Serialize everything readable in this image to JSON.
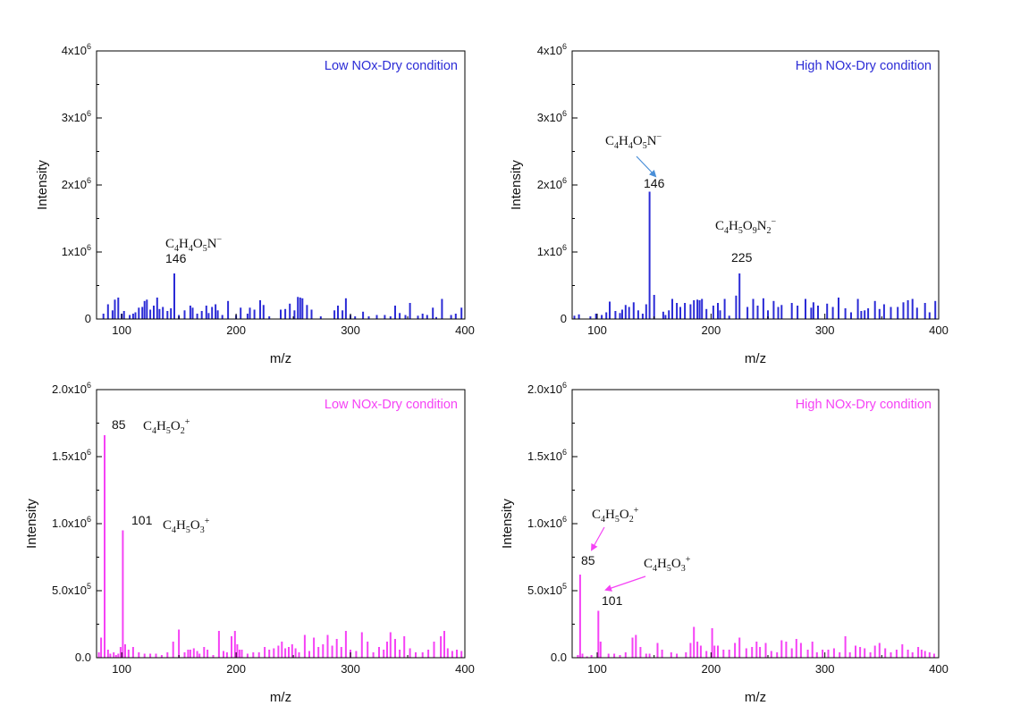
{
  "chart_data": [
    {
      "type": "bar",
      "title": "Low NOx-Dry condition",
      "xlabel": "m/z",
      "ylabel": "Intensity",
      "xlim": [
        78,
        400
      ],
      "ylim": [
        0,
        4000000
      ],
      "xticks": [
        "100",
        "200",
        "300",
        "400"
      ],
      "yticks": [
        "0",
        "1x10^6",
        "2x10^6",
        "3x10^6",
        "4x10^6"
      ],
      "color": "#2b2bd6",
      "x": [
        84,
        88,
        92,
        94,
        97,
        100,
        102,
        107,
        110,
        112,
        115,
        118,
        120,
        122,
        125,
        128,
        131,
        133,
        136,
        140,
        143,
        146,
        150,
        155,
        160,
        162,
        166,
        170,
        174,
        176,
        179,
        182,
        184,
        188,
        193,
        200,
        204,
        210,
        212,
        216,
        221,
        224,
        229,
        239,
        243,
        247,
        251,
        254,
        256,
        258,
        262,
        266,
        274,
        286,
        289,
        293,
        296,
        300,
        304,
        311,
        316,
        323,
        330,
        335,
        339,
        343,
        348,
        352,
        359,
        363,
        367,
        372,
        375,
        380,
        388,
        392,
        397
      ],
      "values": [
        80000,
        220000,
        130000,
        290000,
        320000,
        80000,
        120000,
        60000,
        80000,
        100000,
        170000,
        180000,
        270000,
        290000,
        140000,
        200000,
        320000,
        150000,
        180000,
        120000,
        160000,
        680000,
        60000,
        130000,
        200000,
        170000,
        80000,
        120000,
        200000,
        90000,
        180000,
        220000,
        130000,
        60000,
        270000,
        60000,
        170000,
        80000,
        170000,
        140000,
        280000,
        210000,
        40000,
        140000,
        150000,
        230000,
        130000,
        330000,
        320000,
        310000,
        210000,
        140000,
        40000,
        130000,
        200000,
        130000,
        310000,
        60000,
        40000,
        110000,
        40000,
        60000,
        60000,
        40000,
        200000,
        90000,
        60000,
        240000,
        50000,
        80000,
        60000,
        170000,
        30000,
        300000,
        60000,
        80000,
        170000
      ],
      "annotations": [
        {
          "x": 146,
          "label": "146",
          "formula": "C4H4O5N-"
        }
      ]
    },
    {
      "type": "bar",
      "title": "High NOx-Dry condition",
      "xlabel": "m/z",
      "ylabel": "Intensity",
      "xlim": [
        78,
        400
      ],
      "ylim": [
        0,
        4000000
      ],
      "xticks": [
        "100",
        "200",
        "300",
        "400"
      ],
      "yticks": [
        "0",
        "1x10^6",
        "2x10^6",
        "3x10^6",
        "4x10^6"
      ],
      "color": "#2b2bd6",
      "x": [
        80,
        84,
        94,
        99,
        104,
        108,
        111,
        116,
        120,
        122,
        125,
        128,
        132,
        136,
        140,
        143,
        146,
        150,
        158,
        160,
        163,
        166,
        170,
        173,
        177,
        182,
        185,
        188,
        190,
        192,
        196,
        202,
        206,
        208,
        212,
        216,
        222,
        225,
        232,
        237,
        241,
        246,
        250,
        255,
        259,
        262,
        271,
        276,
        283,
        288,
        290,
        294,
        302,
        307,
        312,
        318,
        323,
        329,
        332,
        335,
        338,
        344,
        348,
        352,
        358,
        364,
        369,
        373,
        377,
        381,
        388,
        392,
        397
      ],
      "values": [
        50000,
        70000,
        40000,
        80000,
        60000,
        100000,
        260000,
        120000,
        90000,
        140000,
        210000,
        180000,
        250000,
        130000,
        80000,
        220000,
        1900000,
        360000,
        110000,
        60000,
        130000,
        300000,
        240000,
        180000,
        240000,
        220000,
        280000,
        290000,
        280000,
        300000,
        150000,
        200000,
        240000,
        130000,
        300000,
        50000,
        350000,
        680000,
        180000,
        300000,
        200000,
        310000,
        130000,
        270000,
        180000,
        210000,
        240000,
        200000,
        300000,
        170000,
        250000,
        200000,
        230000,
        180000,
        320000,
        160000,
        100000,
        300000,
        120000,
        130000,
        160000,
        270000,
        150000,
        220000,
        180000,
        180000,
        250000,
        280000,
        300000,
        170000,
        240000,
        100000,
        270000
      ],
      "annotations": [
        {
          "x": 146,
          "label": "146",
          "formula": "C4H4O5N-"
        },
        {
          "x": 225,
          "label": "225",
          "formula": "C4H5O9N2-"
        }
      ]
    },
    {
      "type": "bar",
      "title": "Low NOx-Dry condition",
      "xlabel": "m/z",
      "ylabel": "Intensity",
      "xlim": [
        78,
        400
      ],
      "ylim": [
        0,
        2000000
      ],
      "xticks": [
        "100",
        "200",
        "300",
        "400"
      ],
      "yticks": [
        "0.0",
        "5.0x10^5",
        "1.0x10^6",
        "1.5x10^6",
        "2.0x10^6"
      ],
      "color": "#f542f5",
      "x": [
        80,
        82,
        85,
        88,
        90,
        93,
        95,
        97,
        99,
        101,
        103,
        106,
        110,
        115,
        120,
        125,
        130,
        135,
        140,
        145,
        150,
        155,
        158,
        160,
        163,
        166,
        168,
        172,
        175,
        180,
        185,
        189,
        192,
        196,
        199,
        201,
        203,
        205,
        210,
        215,
        220,
        225,
        229,
        233,
        237,
        240,
        243,
        246,
        249,
        252,
        255,
        260,
        264,
        268,
        272,
        276,
        280,
        284,
        288,
        292,
        296,
        300,
        305,
        310,
        315,
        320,
        325,
        329,
        332,
        335,
        339,
        343,
        347,
        352,
        357,
        363,
        368,
        373,
        379,
        382,
        385,
        389,
        393,
        397
      ],
      "values": [
        40000,
        150000,
        1660000,
        60000,
        30000,
        40000,
        20000,
        30000,
        80000,
        950000,
        100000,
        60000,
        80000,
        40000,
        30000,
        30000,
        30000,
        20000,
        40000,
        120000,
        210000,
        40000,
        60000,
        60000,
        70000,
        50000,
        30000,
        80000,
        60000,
        20000,
        200000,
        50000,
        40000,
        160000,
        200000,
        100000,
        60000,
        60000,
        30000,
        40000,
        40000,
        80000,
        60000,
        70000,
        90000,
        120000,
        70000,
        80000,
        100000,
        70000,
        40000,
        170000,
        50000,
        150000,
        80000,
        100000,
        170000,
        90000,
        140000,
        80000,
        200000,
        60000,
        50000,
        190000,
        120000,
        40000,
        80000,
        60000,
        120000,
        190000,
        140000,
        60000,
        160000,
        70000,
        40000,
        40000,
        60000,
        120000,
        160000,
        200000,
        70000,
        50000,
        60000,
        50000
      ],
      "annotations": [
        {
          "x": 85,
          "label": "85",
          "formula": "C4H5O2+"
        },
        {
          "x": 101,
          "label": "101",
          "formula": "C4H5O3+"
        }
      ]
    },
    {
      "type": "bar",
      "title": "High NOx-Dry condition",
      "xlabel": "m/z",
      "ylabel": "Intensity",
      "xlim": [
        78,
        400
      ],
      "ylim": [
        0,
        2000000
      ],
      "xticks": [
        "100",
        "200",
        "300",
        "400"
      ],
      "yticks": [
        "0.0",
        "5.0x10^5",
        "1.0x10^6",
        "1.5x10^6",
        "2.0x10^6"
      ],
      "color": "#f542f5",
      "x": [
        83,
        85,
        87,
        91,
        95,
        101,
        103,
        110,
        115,
        120,
        125,
        131,
        134,
        138,
        143,
        146,
        153,
        157,
        165,
        170,
        178,
        182,
        185,
        188,
        191,
        196,
        201,
        203,
        206,
        211,
        216,
        221,
        225,
        231,
        236,
        240,
        243,
        248,
        253,
        258,
        262,
        266,
        271,
        275,
        279,
        285,
        289,
        293,
        298,
        303,
        308,
        313,
        318,
        322,
        327,
        331,
        335,
        340,
        344,
        348,
        353,
        358,
        363,
        368,
        373,
        377,
        382,
        385,
        388,
        392,
        396
      ],
      "values": [
        20000,
        620000,
        30000,
        10000,
        20000,
        350000,
        120000,
        30000,
        30000,
        20000,
        40000,
        150000,
        170000,
        80000,
        30000,
        30000,
        110000,
        60000,
        40000,
        30000,
        40000,
        110000,
        230000,
        120000,
        90000,
        50000,
        220000,
        90000,
        90000,
        60000,
        60000,
        110000,
        150000,
        70000,
        80000,
        120000,
        80000,
        110000,
        50000,
        40000,
        130000,
        120000,
        70000,
        140000,
        110000,
        60000,
        120000,
        40000,
        60000,
        60000,
        70000,
        40000,
        160000,
        40000,
        90000,
        80000,
        70000,
        40000,
        90000,
        110000,
        70000,
        40000,
        60000,
        100000,
        60000,
        40000,
        80000,
        60000,
        50000,
        40000,
        30000
      ],
      "annotations": [
        {
          "x": 85,
          "label": "85",
          "formula": "C4H5O2+"
        },
        {
          "x": 101,
          "label": "101",
          "formula": "C4H5O3+"
        }
      ]
    }
  ]
}
